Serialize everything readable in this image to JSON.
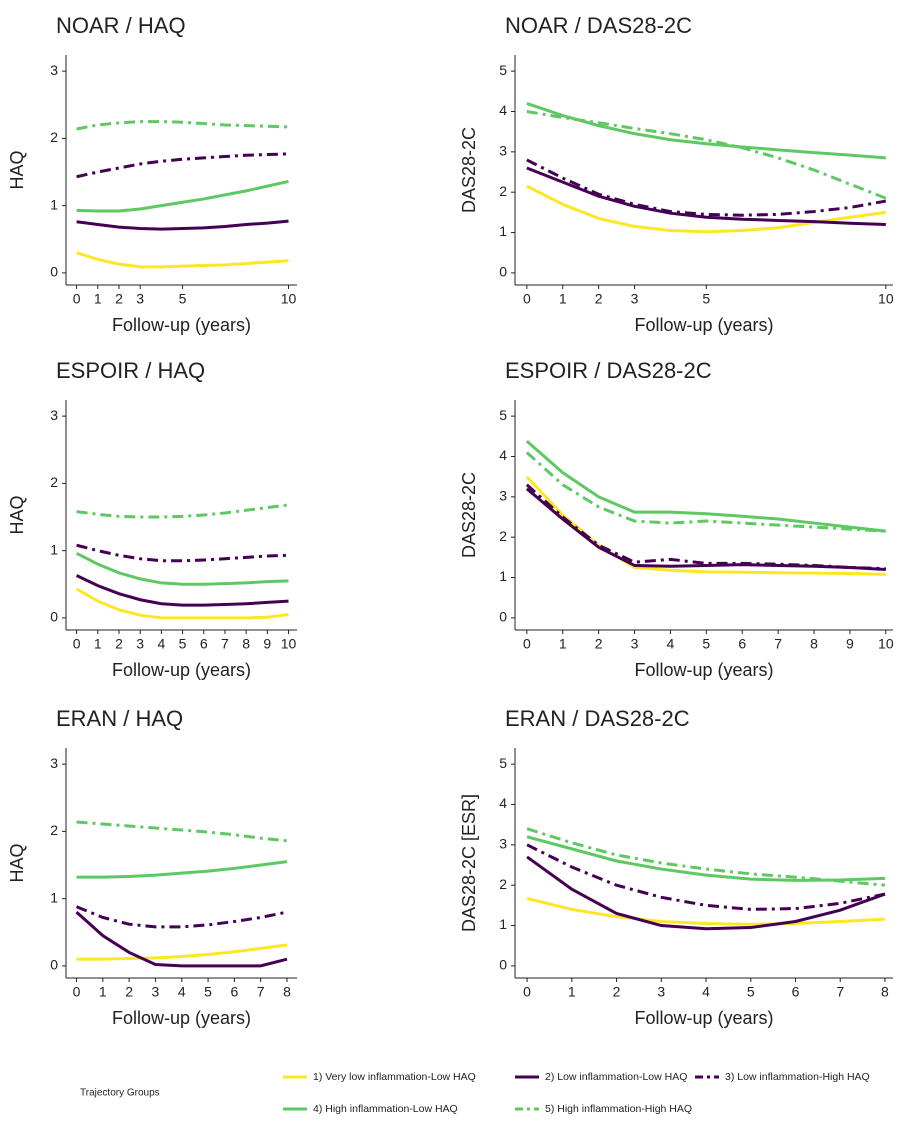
{
  "chart_data": [
    {
      "type": "line",
      "title": "NOAR / HAQ",
      "xlabel": "Follow-up (years)",
      "ylabel": "HAQ",
      "x": [
        0,
        1,
        2,
        3,
        4,
        5,
        6,
        7,
        8,
        9,
        10
      ],
      "xlim": [
        -0.5,
        10.4
      ],
      "xticks": [
        0,
        1,
        2,
        3,
        5,
        10
      ],
      "ylim": [
        -0.18,
        3.24
      ],
      "yticks": [
        0,
        1,
        2,
        3
      ],
      "series": [
        {
          "values": [
            0.3,
            0.2,
            0.13,
            0.09,
            0.09,
            0.1,
            0.11,
            0.12,
            0.14,
            0.16,
            0.18
          ]
        },
        {
          "values": [
            0.76,
            0.72,
            0.68,
            0.66,
            0.65,
            0.66,
            0.67,
            0.69,
            0.72,
            0.74,
            0.77
          ]
        },
        {
          "values": [
            1.43,
            1.5,
            1.56,
            1.62,
            1.66,
            1.69,
            1.71,
            1.73,
            1.75,
            1.76,
            1.77
          ]
        },
        {
          "values": [
            0.93,
            0.92,
            0.92,
            0.95,
            1.0,
            1.05,
            1.1,
            1.16,
            1.22,
            1.29,
            1.36
          ]
        },
        {
          "values": [
            2.14,
            2.2,
            2.23,
            2.25,
            2.25,
            2.24,
            2.22,
            2.2,
            2.19,
            2.18,
            2.17
          ]
        }
      ]
    },
    {
      "type": "line",
      "title": "NOAR / DAS28-2C",
      "xlabel": "Follow-up (years)",
      "ylabel": "DAS28-2C",
      "x": [
        0,
        1,
        2,
        3,
        4,
        5,
        6,
        7,
        8,
        9,
        10
      ],
      "xlim": [
        -0.33,
        10.2
      ],
      "xticks": [
        0,
        1,
        2,
        3,
        5,
        10
      ],
      "ylim": [
        -0.3,
        5.4
      ],
      "yticks": [
        0,
        1,
        2,
        3,
        4,
        5
      ],
      "series": [
        {
          "values": [
            2.15,
            1.7,
            1.35,
            1.15,
            1.05,
            1.02,
            1.05,
            1.12,
            1.25,
            1.38,
            1.5
          ]
        },
        {
          "values": [
            2.6,
            2.25,
            1.9,
            1.65,
            1.48,
            1.38,
            1.33,
            1.3,
            1.27,
            1.23,
            1.2
          ]
        },
        {
          "values": [
            2.8,
            2.35,
            1.95,
            1.7,
            1.52,
            1.45,
            1.43,
            1.45,
            1.52,
            1.62,
            1.78
          ]
        },
        {
          "values": [
            4.2,
            3.9,
            3.65,
            3.45,
            3.3,
            3.2,
            3.12,
            3.05,
            2.98,
            2.92,
            2.85
          ]
        },
        {
          "values": [
            4.0,
            3.85,
            3.72,
            3.58,
            3.45,
            3.3,
            3.1,
            2.85,
            2.55,
            2.2,
            1.85
          ]
        }
      ]
    },
    {
      "type": "line",
      "title": "ESPOIR / HAQ",
      "xlabel": "Follow-up (years)",
      "ylabel": "HAQ",
      "x": [
        0,
        1,
        2,
        3,
        4,
        5,
        6,
        7,
        8,
        9,
        10
      ],
      "xlim": [
        -0.5,
        10.4
      ],
      "xticks": [
        0,
        1,
        2,
        3,
        4,
        5,
        6,
        7,
        8,
        9,
        10
      ],
      "ylim": [
        -0.18,
        3.24
      ],
      "yticks": [
        0,
        1,
        2,
        3
      ],
      "series": [
        {
          "values": [
            0.43,
            0.25,
            0.12,
            0.04,
            0.0,
            0.0,
            0.0,
            0.0,
            0.0,
            0.01,
            0.05
          ]
        },
        {
          "values": [
            0.63,
            0.48,
            0.36,
            0.27,
            0.21,
            0.19,
            0.19,
            0.2,
            0.21,
            0.23,
            0.25
          ]
        },
        {
          "values": [
            1.08,
            1.0,
            0.93,
            0.88,
            0.85,
            0.85,
            0.86,
            0.88,
            0.9,
            0.92,
            0.93
          ]
        },
        {
          "values": [
            0.96,
            0.8,
            0.67,
            0.58,
            0.52,
            0.5,
            0.5,
            0.51,
            0.52,
            0.54,
            0.55
          ]
        },
        {
          "values": [
            1.58,
            1.54,
            1.51,
            1.5,
            1.5,
            1.51,
            1.53,
            1.56,
            1.6,
            1.64,
            1.68
          ]
        }
      ]
    },
    {
      "type": "line",
      "title": "ESPOIR / DAS28-2C",
      "xlabel": "Follow-up (years)",
      "ylabel": "DAS28-2C",
      "x": [
        0,
        1,
        2,
        3,
        4,
        5,
        6,
        7,
        8,
        9,
        10
      ],
      "xlim": [
        -0.33,
        10.2
      ],
      "xticks": [
        0,
        1,
        2,
        3,
        4,
        5,
        6,
        7,
        8,
        9,
        10
      ],
      "ylim": [
        -0.3,
        5.4
      ],
      "yticks": [
        0,
        1,
        2,
        3,
        4,
        5
      ],
      "series": [
        {
          "values": [
            3.5,
            2.55,
            1.8,
            1.25,
            1.18,
            1.14,
            1.13,
            1.12,
            1.11,
            1.1,
            1.08
          ]
        },
        {
          "values": [
            3.2,
            2.45,
            1.75,
            1.3,
            1.28,
            1.3,
            1.32,
            1.3,
            1.28,
            1.25,
            1.2
          ]
        },
        {
          "values": [
            3.3,
            2.5,
            1.8,
            1.38,
            1.45,
            1.35,
            1.35,
            1.33,
            1.3,
            1.25,
            1.22
          ]
        },
        {
          "values": [
            4.38,
            3.6,
            3.0,
            2.62,
            2.62,
            2.58,
            2.52,
            2.45,
            2.35,
            2.25,
            2.15
          ]
        },
        {
          "values": [
            4.1,
            3.3,
            2.75,
            2.4,
            2.35,
            2.4,
            2.35,
            2.3,
            2.25,
            2.2,
            2.15
          ]
        }
      ]
    },
    {
      "type": "line",
      "title": "ERAN / HAQ",
      "xlabel": "Follow-up (years)",
      "ylabel": "HAQ",
      "x": [
        0,
        1,
        2,
        3,
        4,
        5,
        6,
        7,
        8
      ],
      "xlim": [
        -0.4,
        8.38
      ],
      "xticks": [
        0,
        1,
        2,
        3,
        4,
        5,
        6,
        7,
        8
      ],
      "ylim": [
        -0.18,
        3.24
      ],
      "yticks": [
        0,
        1,
        2,
        3
      ],
      "series": [
        {
          "values": [
            0.1,
            0.1,
            0.11,
            0.12,
            0.14,
            0.17,
            0.21,
            0.26,
            0.31
          ]
        },
        {
          "values": [
            0.8,
            0.45,
            0.2,
            0.02,
            0.0,
            0.0,
            0.0,
            0.0,
            0.1
          ]
        },
        {
          "values": [
            0.88,
            0.72,
            0.62,
            0.58,
            0.58,
            0.61,
            0.66,
            0.72,
            0.8
          ]
        },
        {
          "values": [
            1.32,
            1.32,
            1.33,
            1.35,
            1.38,
            1.41,
            1.45,
            1.5,
            1.55
          ]
        },
        {
          "values": [
            2.14,
            2.11,
            2.08,
            2.05,
            2.02,
            1.99,
            1.95,
            1.9,
            1.86
          ]
        }
      ]
    },
    {
      "type": "line",
      "title": "ERAN / DAS28-2C",
      "xlabel": "Follow-up (years)",
      "ylabel": "DAS28-2C [ESR]",
      "x": [
        0,
        1,
        2,
        3,
        4,
        5,
        6,
        7,
        8
      ],
      "xlim": [
        -0.27,
        8.18
      ],
      "xticks": [
        0,
        1,
        2,
        3,
        4,
        5,
        6,
        7,
        8
      ],
      "ylim": [
        -0.3,
        5.4
      ],
      "yticks": [
        0,
        1,
        2,
        3,
        4,
        5
      ],
      "series": [
        {
          "values": [
            1.67,
            1.4,
            1.22,
            1.1,
            1.05,
            1.03,
            1.05,
            1.1,
            1.16
          ]
        },
        {
          "values": [
            2.7,
            1.9,
            1.3,
            1.0,
            0.92,
            0.95,
            1.1,
            1.38,
            1.78
          ]
        },
        {
          "values": [
            3.0,
            2.45,
            2.0,
            1.7,
            1.5,
            1.4,
            1.42,
            1.55,
            1.78
          ]
        },
        {
          "values": [
            3.2,
            2.9,
            2.6,
            2.4,
            2.25,
            2.15,
            2.12,
            2.13,
            2.17
          ]
        },
        {
          "values": [
            3.4,
            3.05,
            2.75,
            2.55,
            2.4,
            2.28,
            2.2,
            2.1,
            2.0
          ]
        }
      ]
    }
  ],
  "legend": {
    "title": "Trajectory Groups",
    "items": [
      {
        "name": "1) Very low inflammation-Low HAQ",
        "color": "#fde725",
        "dashed": false
      },
      {
        "name": "2) Low inflammation-Low HAQ",
        "color": "#440154",
        "dashed": false
      },
      {
        "name": "3) Low inflammation-High HAQ",
        "color": "#440154",
        "dashed": true
      },
      {
        "name": "4) High inflammation-Low HAQ",
        "color": "#5ec962",
        "dashed": false
      },
      {
        "name": "5) High inflammation-High HAQ",
        "color": "#5ec962",
        "dashed": true
      }
    ]
  }
}
